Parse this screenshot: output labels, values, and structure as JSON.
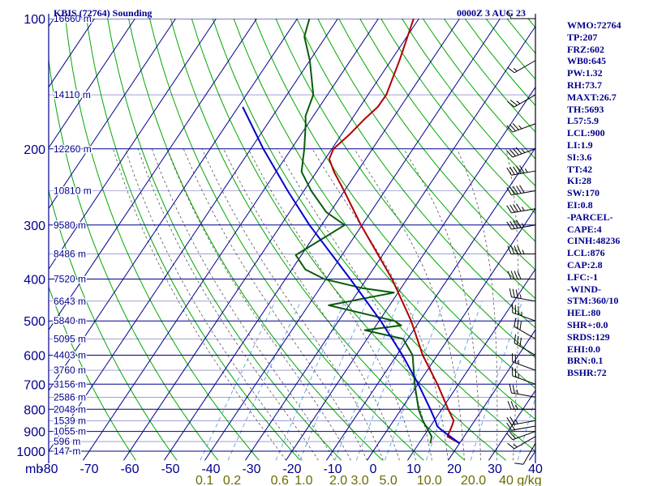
{
  "header": {
    "station": "KBIS (72764) Sounding",
    "time": "0000Z  3 AUG 23"
  },
  "colors": {
    "axes": "#00008b",
    "isotherm": "#00008b",
    "temperature": "#b00000",
    "dewpoint": "#0a5c0a",
    "parcel": "#0000cc",
    "dry_adiabat": "#00a800",
    "moist_adiabat": "#555555",
    "mixing_ratio": "#5aa0e6",
    "wind": "#000000",
    "tick_label": "#00008b",
    "mixing_label": "#6b6b00"
  },
  "stats": [
    {
      "label": "WMO:72764"
    },
    {
      "label": "TP:207"
    },
    {
      "label": "FRZ:602"
    },
    {
      "label": "WB0:645"
    },
    {
      "label": "PW:1.32"
    },
    {
      "label": "RH:73.7"
    },
    {
      "label": "MAXT:26.7"
    },
    {
      "label": "TH:5693"
    },
    {
      "label": "L57:5.9"
    },
    {
      "label": "LCL:900"
    },
    {
      "label": "LI:1.9"
    },
    {
      "label": "SI:3.6"
    },
    {
      "label": "TT:42"
    },
    {
      "label": "KI:28"
    },
    {
      "label": "SW:170"
    },
    {
      "label": "EI:0.8"
    },
    {
      "label": "-PARCEL-"
    },
    {
      "label": "CAPE:4"
    },
    {
      "label": "CINH:48236"
    },
    {
      "label": "LCL:876"
    },
    {
      "label": "CAP:2.8"
    },
    {
      "label": "LFC:-1"
    },
    {
      "label": "-WIND-"
    },
    {
      "label": "STM:360/10"
    },
    {
      "label": "HEL:80"
    },
    {
      "label": "SHR+:0.0"
    },
    {
      "label": "SRDS:129"
    },
    {
      "label": "EHI:0.0"
    },
    {
      "label": "BRN:0.1"
    },
    {
      "label": "BSHR:72"
    }
  ],
  "chart_data": {
    "type": "line",
    "title": "KBIS (72764) Sounding",
    "subtitle": "0000Z  3 AUG 23",
    "xlabel": "",
    "ylabel": "",
    "x_unit_label": "mb",
    "xlim": [
      -80,
      40
    ],
    "ylim_mb": [
      1000,
      100
    ],
    "log_scale_y": true,
    "skew": true,
    "grid": true,
    "x_ticks": [
      -80,
      -70,
      -60,
      -50,
      -40,
      -30,
      -20,
      -10,
      0,
      10,
      20,
      30,
      40
    ],
    "x_tick_labels": [
      "-80",
      "-70",
      "-60",
      "-50",
      "-40",
      "-30",
      "-20",
      "-10",
      "0",
      "10",
      "20",
      "30",
      "40"
    ],
    "pressure_levels": [
      100,
      200,
      300,
      400,
      500,
      600,
      700,
      800,
      900,
      1000
    ],
    "pressure_labels": [
      "100",
      "200",
      "300",
      "400",
      "500",
      "600",
      "700",
      "800",
      "900",
      "1000"
    ],
    "height_labels": [
      {
        "p": 100,
        "label": "16660 m"
      },
      {
        "p": 150,
        "label": "14110 m"
      },
      {
        "p": 200,
        "label": "12260 m"
      },
      {
        "p": 250,
        "label": "10810 m"
      },
      {
        "p": 300,
        "label": "9580 m"
      },
      {
        "p": 350,
        "label": "8486 m"
      },
      {
        "p": 400,
        "label": "7520 m"
      },
      {
        "p": 450,
        "label": "6643 m"
      },
      {
        "p": 500,
        "label": "5840 m"
      },
      {
        "p": 550,
        "label": "5095 m"
      },
      {
        "p": 600,
        "label": "4403 m"
      },
      {
        "p": 650,
        "label": "3760 m"
      },
      {
        "p": 700,
        "label": "3156 m"
      },
      {
        "p": 750,
        "label": "2586 m"
      },
      {
        "p": 800,
        "label": "2048 m"
      },
      {
        "p": 850,
        "label": "1539 m"
      },
      {
        "p": 900,
        "label": "1055 m"
      },
      {
        "p": 950,
        "label": "596 m"
      },
      {
        "p": 1000,
        "label": "147 m"
      }
    ],
    "mixing_ratio_labels": [
      "0.1",
      "0.2",
      "0.6",
      "1.0",
      "2.0",
      "3.0",
      "5.0",
      "10.0",
      "20.0",
      "40 g/kg"
    ],
    "mixing_ratio_values": [
      0.1,
      0.2,
      0.6,
      1.0,
      2.0,
      3.0,
      5.0,
      10.0,
      20.0,
      40.0
    ],
    "series": [
      {
        "points": [
          {
            "p": 959,
            "t": 20.0
          },
          {
            "p": 925,
            "t": 15.9
          },
          {
            "p": 871,
            "t": 15.2
          },
          {
            "p": 850,
            "t": 14.8
          },
          {
            "p": 800,
            "t": 11.6
          },
          {
            "p": 700,
            "t": 4.8
          },
          {
            "p": 600,
            "t": -3.6
          },
          {
            "p": 500,
            "t": -12.1
          },
          {
            "p": 400,
            "t": -23.7
          },
          {
            "p": 300,
            "t": -40.3
          },
          {
            "p": 250,
            "t": -50.1
          },
          {
            "p": 226,
            "t": -55.7
          },
          {
            "p": 211,
            "t": -59.0
          },
          {
            "p": 200,
            "t": -59.6
          },
          {
            "p": 186,
            "t": -58.1
          },
          {
            "p": 170,
            "t": -56.8
          },
          {
            "p": 160,
            "t": -55.6
          },
          {
            "p": 150,
            "t": -55.5
          },
          {
            "p": 125,
            "t": -57.9
          },
          {
            "p": 100,
            "t": -61.3
          }
        ]
      },
      {
        "points": [
          {
            "p": 959,
            "t": 12.8
          },
          {
            "p": 925,
            "t": 12.0
          },
          {
            "p": 850,
            "t": 7.2
          },
          {
            "p": 800,
            "t": 4.3
          },
          {
            "p": 700,
            "t": -0.8
          },
          {
            "p": 600,
            "t": -6.1
          },
          {
            "p": 550,
            "t": -11.1
          },
          {
            "p": 525,
            "t": -22.0
          },
          {
            "p": 512,
            "t": -13.8
          },
          {
            "p": 500,
            "t": -16.2
          },
          {
            "p": 460,
            "t": -35.0
          },
          {
            "p": 430,
            "t": -21.0
          },
          {
            "p": 420,
            "t": -29.5
          },
          {
            "p": 400,
            "t": -40.4
          },
          {
            "p": 380,
            "t": -46.7
          },
          {
            "p": 352,
            "t": -51.4
          },
          {
            "p": 300,
            "t": -44.3
          },
          {
            "p": 280,
            "t": -51.0
          },
          {
            "p": 250,
            "t": -58.2
          },
          {
            "p": 226,
            "t": -63.7
          },
          {
            "p": 200,
            "t": -66.8
          },
          {
            "p": 175,
            "t": -70.6
          },
          {
            "p": 168,
            "t": -71.9
          },
          {
            "p": 150,
            "t": -73.5
          },
          {
            "p": 125,
            "t": -80.0
          },
          {
            "p": 110,
            "t": -85.3
          },
          {
            "p": 100,
            "t": -87.0
          }
        ]
      },
      {
        "points": [
          {
            "p": 959,
            "t": 20.0
          },
          {
            "p": 900,
            "t": 14.0
          },
          {
            "p": 876,
            "t": 11.7
          },
          {
            "p": 850,
            "t": 10.3
          },
          {
            "p": 800,
            "t": 7.2
          },
          {
            "p": 700,
            "t": 0.1
          },
          {
            "p": 600,
            "t": -8.6
          },
          {
            "p": 500,
            "t": -19.6
          },
          {
            "p": 400,
            "t": -34.0
          },
          {
            "p": 300,
            "t": -53.0
          },
          {
            "p": 250,
            "t": -64.0
          },
          {
            "p": 200,
            "t": -76.9
          },
          {
            "p": 160,
            "t": -88.9
          }
        ]
      }
    ],
    "wind_barbs": [
      {
        "p": 959,
        "dir": 210,
        "spd": 10
      },
      {
        "p": 925,
        "dir": 240,
        "spd": 15
      },
      {
        "p": 900,
        "dir": 250,
        "spd": 20
      },
      {
        "p": 875,
        "dir": 260,
        "spd": 20
      },
      {
        "p": 850,
        "dir": 260,
        "spd": 25
      },
      {
        "p": 800,
        "dir": 270,
        "spd": 25
      },
      {
        "p": 750,
        "dir": 280,
        "spd": 25
      },
      {
        "p": 700,
        "dir": 290,
        "spd": 25
      },
      {
        "p": 650,
        "dir": 290,
        "spd": 25
      },
      {
        "p": 600,
        "dir": 300,
        "spd": 30
      },
      {
        "p": 550,
        "dir": 300,
        "spd": 30
      },
      {
        "p": 500,
        "dir": 290,
        "spd": 35
      },
      {
        "p": 450,
        "dir": 280,
        "spd": 35
      },
      {
        "p": 400,
        "dir": 270,
        "spd": 40
      },
      {
        "p": 350,
        "dir": 270,
        "spd": 45
      },
      {
        "p": 300,
        "dir": 260,
        "spd": 45
      },
      {
        "p": 275,
        "dir": 260,
        "spd": 45
      },
      {
        "p": 250,
        "dir": 260,
        "spd": 50
      },
      {
        "p": 225,
        "dir": 260,
        "spd": 55
      },
      {
        "p": 200,
        "dir": 250,
        "spd": 45
      },
      {
        "p": 175,
        "dir": 250,
        "spd": 35
      },
      {
        "p": 150,
        "dir": 240,
        "spd": 25
      },
      {
        "p": 125,
        "dir": 240,
        "spd": 15
      },
      {
        "p": 100,
        "dir": 270,
        "spd": 10
      }
    ]
  }
}
